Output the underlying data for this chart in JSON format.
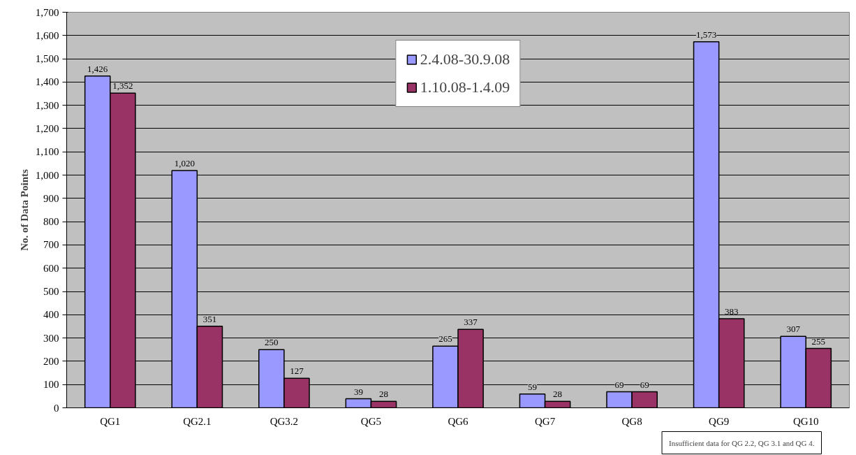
{
  "chart_data": {
    "type": "bar",
    "ylabel": "No. of Data Points",
    "categories": [
      "QG1",
      "QG2.1",
      "QG3.2",
      "QG5",
      "QG6",
      "QG7",
      "QG8",
      "QG9",
      "QG10"
    ],
    "series": [
      {
        "name": "2.4.08-30.9.08",
        "color": "#9999ff",
        "values": [
          1426,
          1020,
          250,
          39,
          265,
          59,
          69,
          1573,
          307
        ],
        "value_labels": [
          "1,426",
          "1,020",
          "250",
          "39",
          "265",
          "59",
          "69",
          "1,573",
          "307"
        ]
      },
      {
        "name": "1.10.08-1.4.09",
        "color": "#993366",
        "values": [
          1352,
          351,
          127,
          28,
          337,
          28,
          69,
          383,
          255
        ],
        "value_labels": [
          "1,352",
          "351",
          "127",
          "28",
          "337",
          "28",
          "69",
          "383",
          "255"
        ]
      }
    ],
    "ylim": [
      0,
      1700
    ],
    "yticks": [
      0,
      100,
      200,
      300,
      400,
      500,
      600,
      700,
      800,
      900,
      {
        "value": 1000,
        "label": "1,000"
      },
      {
        "value": 1100,
        "label": "1,100"
      },
      {
        "value": 1200,
        "label": "1,200"
      },
      {
        "value": 1300,
        "label": "1,300"
      },
      {
        "value": 1400,
        "label": "1,400"
      },
      {
        "value": 1500,
        "label": "1,500"
      },
      {
        "value": 1600,
        "label": "1,600"
      },
      {
        "value": 1700,
        "label": "1,700"
      }
    ],
    "grid": "y",
    "legend": "top",
    "annotations": [
      "Insufficient data for QG 2.2, QG 3.1 and QG 4."
    ]
  }
}
